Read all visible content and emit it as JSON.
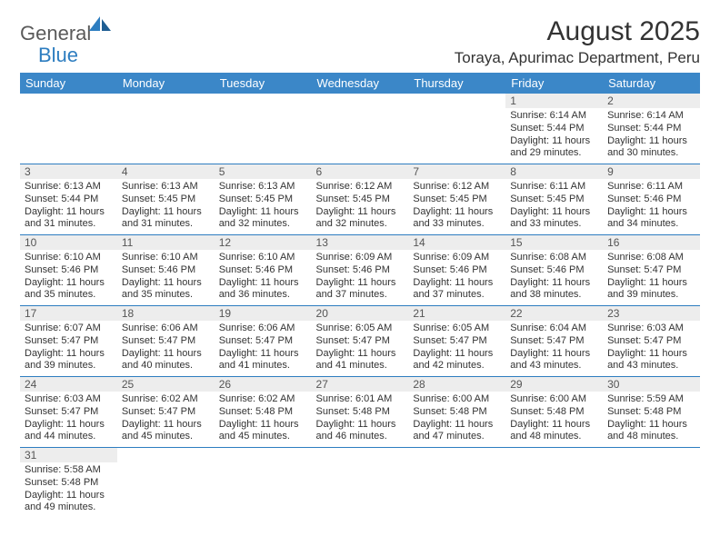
{
  "logo": {
    "general": "General",
    "blue": "Blue"
  },
  "title": "August 2025",
  "location": "Toraya, Apurimac Department, Peru",
  "colors": {
    "header_bg": "#3b87c8",
    "header_text": "#ffffff",
    "row_divider": "#2d7dc0",
    "daynum_bg": "#ededed",
    "text": "#333333"
  },
  "day_labels": [
    "Sunday",
    "Monday",
    "Tuesday",
    "Wednesday",
    "Thursday",
    "Friday",
    "Saturday"
  ],
  "weeks": [
    [
      {
        "num": "",
        "sunrise": "",
        "sunset": "",
        "daylight": ""
      },
      {
        "num": "",
        "sunrise": "",
        "sunset": "",
        "daylight": ""
      },
      {
        "num": "",
        "sunrise": "",
        "sunset": "",
        "daylight": ""
      },
      {
        "num": "",
        "sunrise": "",
        "sunset": "",
        "daylight": ""
      },
      {
        "num": "",
        "sunrise": "",
        "sunset": "",
        "daylight": ""
      },
      {
        "num": "1",
        "sunrise": "Sunrise: 6:14 AM",
        "sunset": "Sunset: 5:44 PM",
        "daylight": "Daylight: 11 hours and 29 minutes."
      },
      {
        "num": "2",
        "sunrise": "Sunrise: 6:14 AM",
        "sunset": "Sunset: 5:44 PM",
        "daylight": "Daylight: 11 hours and 30 minutes."
      }
    ],
    [
      {
        "num": "3",
        "sunrise": "Sunrise: 6:13 AM",
        "sunset": "Sunset: 5:44 PM",
        "daylight": "Daylight: 11 hours and 31 minutes."
      },
      {
        "num": "4",
        "sunrise": "Sunrise: 6:13 AM",
        "sunset": "Sunset: 5:45 PM",
        "daylight": "Daylight: 11 hours and 31 minutes."
      },
      {
        "num": "5",
        "sunrise": "Sunrise: 6:13 AM",
        "sunset": "Sunset: 5:45 PM",
        "daylight": "Daylight: 11 hours and 32 minutes."
      },
      {
        "num": "6",
        "sunrise": "Sunrise: 6:12 AM",
        "sunset": "Sunset: 5:45 PM",
        "daylight": "Daylight: 11 hours and 32 minutes."
      },
      {
        "num": "7",
        "sunrise": "Sunrise: 6:12 AM",
        "sunset": "Sunset: 5:45 PM",
        "daylight": "Daylight: 11 hours and 33 minutes."
      },
      {
        "num": "8",
        "sunrise": "Sunrise: 6:11 AM",
        "sunset": "Sunset: 5:45 PM",
        "daylight": "Daylight: 11 hours and 33 minutes."
      },
      {
        "num": "9",
        "sunrise": "Sunrise: 6:11 AM",
        "sunset": "Sunset: 5:46 PM",
        "daylight": "Daylight: 11 hours and 34 minutes."
      }
    ],
    [
      {
        "num": "10",
        "sunrise": "Sunrise: 6:10 AM",
        "sunset": "Sunset: 5:46 PM",
        "daylight": "Daylight: 11 hours and 35 minutes."
      },
      {
        "num": "11",
        "sunrise": "Sunrise: 6:10 AM",
        "sunset": "Sunset: 5:46 PM",
        "daylight": "Daylight: 11 hours and 35 minutes."
      },
      {
        "num": "12",
        "sunrise": "Sunrise: 6:10 AM",
        "sunset": "Sunset: 5:46 PM",
        "daylight": "Daylight: 11 hours and 36 minutes."
      },
      {
        "num": "13",
        "sunrise": "Sunrise: 6:09 AM",
        "sunset": "Sunset: 5:46 PM",
        "daylight": "Daylight: 11 hours and 37 minutes."
      },
      {
        "num": "14",
        "sunrise": "Sunrise: 6:09 AM",
        "sunset": "Sunset: 5:46 PM",
        "daylight": "Daylight: 11 hours and 37 minutes."
      },
      {
        "num": "15",
        "sunrise": "Sunrise: 6:08 AM",
        "sunset": "Sunset: 5:46 PM",
        "daylight": "Daylight: 11 hours and 38 minutes."
      },
      {
        "num": "16",
        "sunrise": "Sunrise: 6:08 AM",
        "sunset": "Sunset: 5:47 PM",
        "daylight": "Daylight: 11 hours and 39 minutes."
      }
    ],
    [
      {
        "num": "17",
        "sunrise": "Sunrise: 6:07 AM",
        "sunset": "Sunset: 5:47 PM",
        "daylight": "Daylight: 11 hours and 39 minutes."
      },
      {
        "num": "18",
        "sunrise": "Sunrise: 6:06 AM",
        "sunset": "Sunset: 5:47 PM",
        "daylight": "Daylight: 11 hours and 40 minutes."
      },
      {
        "num": "19",
        "sunrise": "Sunrise: 6:06 AM",
        "sunset": "Sunset: 5:47 PM",
        "daylight": "Daylight: 11 hours and 41 minutes."
      },
      {
        "num": "20",
        "sunrise": "Sunrise: 6:05 AM",
        "sunset": "Sunset: 5:47 PM",
        "daylight": "Daylight: 11 hours and 41 minutes."
      },
      {
        "num": "21",
        "sunrise": "Sunrise: 6:05 AM",
        "sunset": "Sunset: 5:47 PM",
        "daylight": "Daylight: 11 hours and 42 minutes."
      },
      {
        "num": "22",
        "sunrise": "Sunrise: 6:04 AM",
        "sunset": "Sunset: 5:47 PM",
        "daylight": "Daylight: 11 hours and 43 minutes."
      },
      {
        "num": "23",
        "sunrise": "Sunrise: 6:03 AM",
        "sunset": "Sunset: 5:47 PM",
        "daylight": "Daylight: 11 hours and 43 minutes."
      }
    ],
    [
      {
        "num": "24",
        "sunrise": "Sunrise: 6:03 AM",
        "sunset": "Sunset: 5:47 PM",
        "daylight": "Daylight: 11 hours and 44 minutes."
      },
      {
        "num": "25",
        "sunrise": "Sunrise: 6:02 AM",
        "sunset": "Sunset: 5:47 PM",
        "daylight": "Daylight: 11 hours and 45 minutes."
      },
      {
        "num": "26",
        "sunrise": "Sunrise: 6:02 AM",
        "sunset": "Sunset: 5:48 PM",
        "daylight": "Daylight: 11 hours and 45 minutes."
      },
      {
        "num": "27",
        "sunrise": "Sunrise: 6:01 AM",
        "sunset": "Sunset: 5:48 PM",
        "daylight": "Daylight: 11 hours and 46 minutes."
      },
      {
        "num": "28",
        "sunrise": "Sunrise: 6:00 AM",
        "sunset": "Sunset: 5:48 PM",
        "daylight": "Daylight: 11 hours and 47 minutes."
      },
      {
        "num": "29",
        "sunrise": "Sunrise: 6:00 AM",
        "sunset": "Sunset: 5:48 PM",
        "daylight": "Daylight: 11 hours and 48 minutes."
      },
      {
        "num": "30",
        "sunrise": "Sunrise: 5:59 AM",
        "sunset": "Sunset: 5:48 PM",
        "daylight": "Daylight: 11 hours and 48 minutes."
      }
    ],
    [
      {
        "num": "31",
        "sunrise": "Sunrise: 5:58 AM",
        "sunset": "Sunset: 5:48 PM",
        "daylight": "Daylight: 11 hours and 49 minutes."
      },
      {
        "num": "",
        "sunrise": "",
        "sunset": "",
        "daylight": ""
      },
      {
        "num": "",
        "sunrise": "",
        "sunset": "",
        "daylight": ""
      },
      {
        "num": "",
        "sunrise": "",
        "sunset": "",
        "daylight": ""
      },
      {
        "num": "",
        "sunrise": "",
        "sunset": "",
        "daylight": ""
      },
      {
        "num": "",
        "sunrise": "",
        "sunset": "",
        "daylight": ""
      },
      {
        "num": "",
        "sunrise": "",
        "sunset": "",
        "daylight": ""
      }
    ]
  ]
}
